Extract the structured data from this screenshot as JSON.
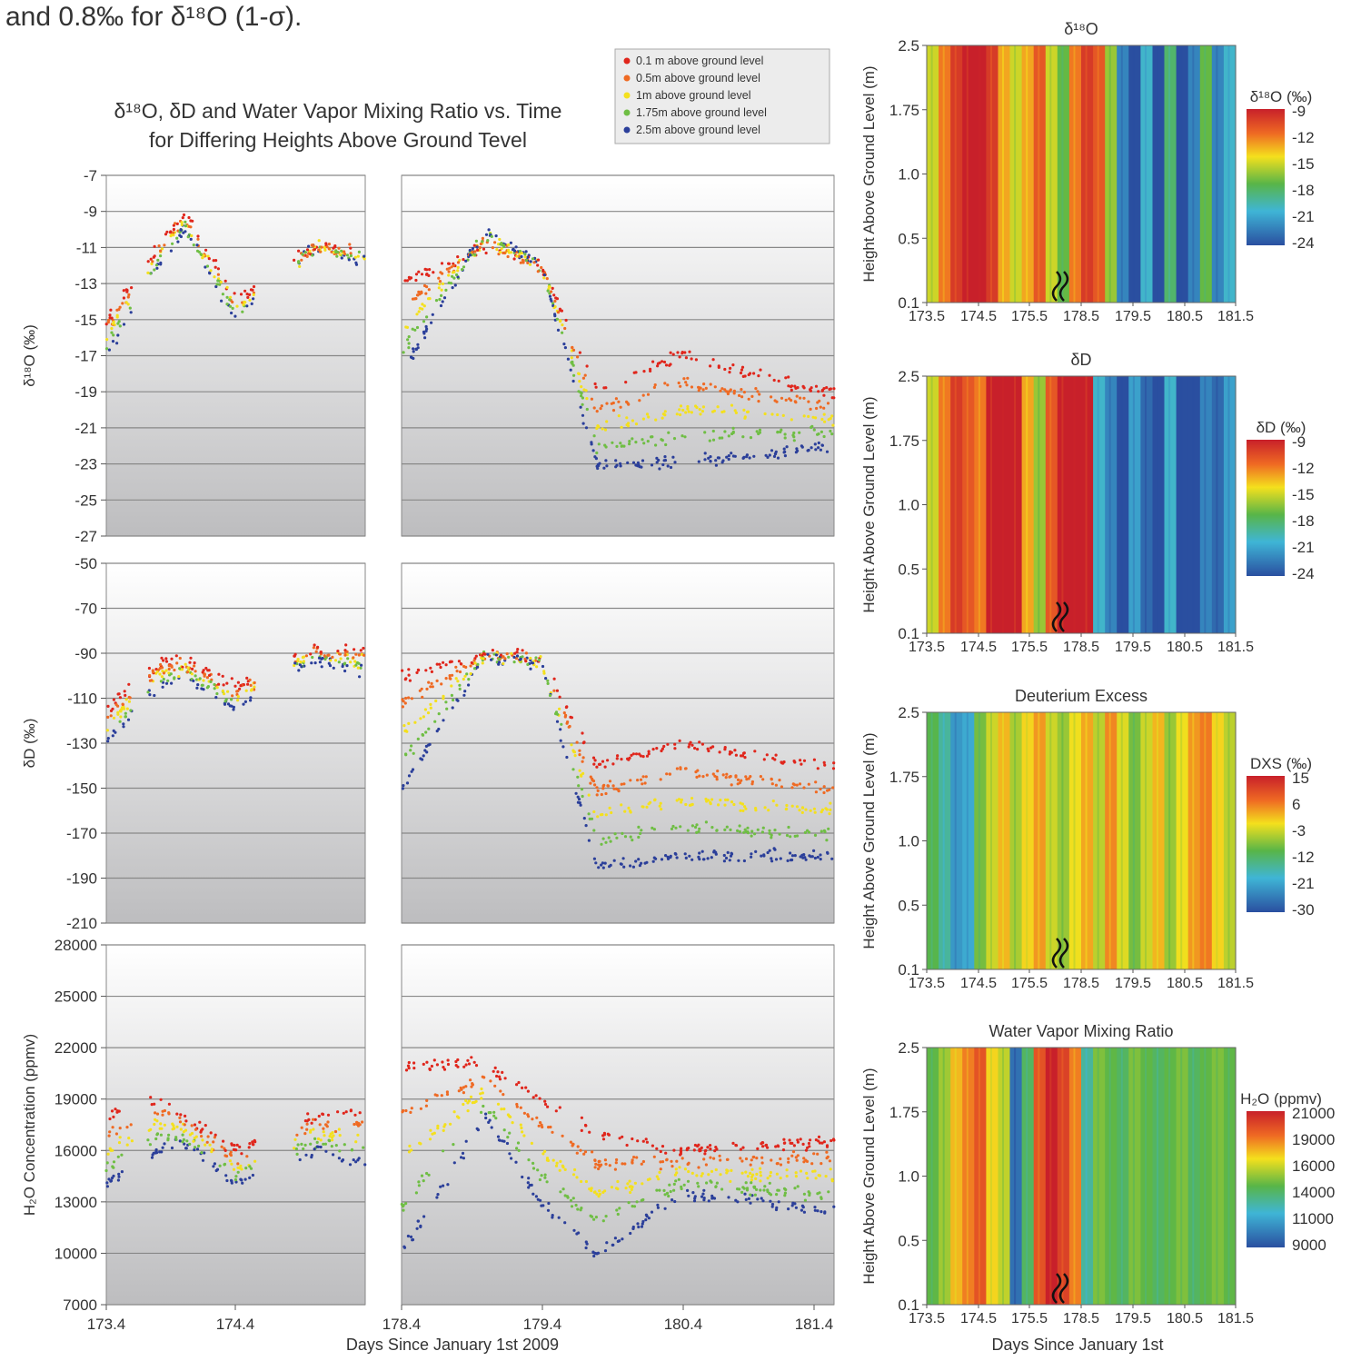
{
  "caption_fragment": "and 0.8‰ for δ¹⁸O (1-σ).",
  "left_figure": {
    "title_line1": "δ¹⁸O, δD and Water Vapor Mixing Ratio vs. Time",
    "title_line2": "for Differing Heights Above Ground Tevel",
    "xlabel": "Days Since January 1st 2009",
    "legend": [
      {
        "label": "0.1 m above ground level",
        "color": "#e0261c"
      },
      {
        "label": "0.5m above ground level",
        "color": "#ef6a23"
      },
      {
        "label": "1m above ground level",
        "color": "#f4e01d"
      },
      {
        "label": "1.75m above ground level",
        "color": "#6fbe44"
      },
      {
        "label": "2.5m above ground level",
        "color": "#2b3f9a"
      }
    ]
  },
  "chart_data": [
    {
      "type": "scatter",
      "id": "d18o-series",
      "ylabel": "δ¹⁸O (‰)",
      "yticks": [
        "-7",
        "-9",
        "-11",
        "-13",
        "-15",
        "-17",
        "-19",
        "-21",
        "-23",
        "-25",
        "-27"
      ],
      "ylim": [
        -27,
        -7
      ],
      "xticks": [
        "173.4",
        "174.4",
        "178.4",
        "179.4",
        "180.4",
        "181.4"
      ],
      "xlim": [
        173.4,
        181.5
      ],
      "axis_break": [
        175.4,
        178.4
      ],
      "series_approx_mean": {
        "0.1 m above ground level": [
          [
            173.4,
            -15
          ],
          [
            173.8,
            -11
          ],
          [
            174.0,
            -9
          ],
          [
            174.4,
            -14
          ],
          [
            175.0,
            -11
          ],
          [
            178.4,
            -13
          ],
          [
            179.0,
            -11
          ],
          [
            179.4,
            -12
          ],
          [
            179.8,
            -19
          ],
          [
            180.4,
            -17
          ],
          [
            181.4,
            -19
          ]
        ],
        "2.5m above ground level": [
          [
            173.4,
            -17
          ],
          [
            173.8,
            -12
          ],
          [
            174.0,
            -10
          ],
          [
            174.4,
            -15
          ],
          [
            175.0,
            -11
          ],
          [
            178.4,
            -18
          ],
          [
            179.0,
            -10
          ],
          [
            179.4,
            -12
          ],
          [
            179.8,
            -23
          ],
          [
            180.4,
            -23
          ],
          [
            181.4,
            -22
          ]
        ]
      }
    },
    {
      "type": "scatter",
      "id": "dd-series",
      "ylabel": "δD (‰)",
      "yticks": [
        "-50",
        "-70",
        "-90",
        "-110",
        "-130",
        "-150",
        "-170",
        "-190",
        "-210"
      ],
      "ylim": [
        -210,
        -50
      ],
      "xticks": [
        "173.4",
        "174.4",
        "178.4",
        "179.4",
        "180.4",
        "181.4"
      ],
      "xlim": [
        173.4,
        181.5
      ],
      "axis_break": [
        175.4,
        178.4
      ],
      "series_approx_mean": {
        "0.1 m above ground level": [
          [
            173.4,
            -115
          ],
          [
            173.8,
            -95
          ],
          [
            174.0,
            -93
          ],
          [
            174.4,
            -105
          ],
          [
            175.0,
            -88
          ],
          [
            178.4,
            -100
          ],
          [
            179.0,
            -90
          ],
          [
            179.4,
            -92
          ],
          [
            179.8,
            -140
          ],
          [
            180.4,
            -130
          ],
          [
            181.4,
            -140
          ]
        ],
        "2.5m above ground level": [
          [
            173.4,
            -130
          ],
          [
            173.8,
            -105
          ],
          [
            174.0,
            -100
          ],
          [
            174.4,
            -115
          ],
          [
            175.0,
            -92
          ],
          [
            178.4,
            -150
          ],
          [
            179.0,
            -92
          ],
          [
            179.4,
            -95
          ],
          [
            179.8,
            -185
          ],
          [
            180.4,
            -180
          ],
          [
            181.4,
            -180
          ]
        ]
      }
    },
    {
      "type": "scatter",
      "id": "h2o-series",
      "ylabel": "H₂O Concentration (ppmv)",
      "yticks": [
        "28000",
        "25000",
        "22000",
        "19000",
        "16000",
        "13000",
        "10000",
        "7000"
      ],
      "ylim": [
        7000,
        28000
      ],
      "xticks": [
        "173.4",
        "174.4",
        "178.4",
        "179.4",
        "180.4",
        "181.4"
      ],
      "xlim": [
        173.4,
        181.5
      ],
      "axis_break": [
        175.4,
        178.4
      ],
      "series_approx_mean": {
        "0.1 m above ground level": [
          [
            173.4,
            18000
          ],
          [
            173.8,
            19000
          ],
          [
            174.0,
            18000
          ],
          [
            174.4,
            16000
          ],
          [
            175.0,
            18000
          ],
          [
            178.4,
            21000
          ],
          [
            179.0,
            21000
          ],
          [
            179.4,
            19000
          ],
          [
            179.8,
            17000
          ],
          [
            180.4,
            16000
          ],
          [
            181.4,
            16500
          ]
        ],
        "2.5m above ground level": [
          [
            173.4,
            14000
          ],
          [
            173.8,
            16000
          ],
          [
            174.0,
            16500
          ],
          [
            174.4,
            14000
          ],
          [
            175.0,
            16000
          ],
          [
            178.4,
            10000
          ],
          [
            179.0,
            18000
          ],
          [
            179.4,
            13000
          ],
          [
            179.8,
            10000
          ],
          [
            180.4,
            13500
          ],
          [
            181.4,
            12500
          ]
        ]
      }
    },
    {
      "type": "heatmap",
      "id": "hm-d18o",
      "title": "δ¹⁸O",
      "ylabel": "Height Above Ground Level (m)",
      "yticks": [
        "2.5",
        "1.75",
        "1.0",
        "0.5",
        "0.1"
      ],
      "xticks": [
        "173.5",
        "174.5",
        "175.5",
        "178.5",
        "179.5",
        "180.5",
        "181.5"
      ],
      "colorbar_label": "δ¹⁸O (‰)",
      "colorbar_ticks": [
        "-9",
        "-12",
        "-15",
        "-18",
        "-21",
        "-24"
      ],
      "column_values": [
        -15,
        -12,
        -10,
        -9,
        -8,
        -10,
        -13,
        -15,
        -13,
        -11,
        -15,
        -17,
        -12,
        -10,
        -11,
        -16,
        -22,
        -25,
        -20,
        -24,
        -18,
        -26,
        -22,
        -17,
        -22,
        -20
      ]
    },
    {
      "type": "heatmap",
      "id": "hm-dd",
      "title": "δD",
      "ylabel": "Height Above Ground Level (m)",
      "yticks": [
        "2.5",
        "1.75",
        "1.0",
        "0.5",
        "0.1"
      ],
      "xticks": [
        "173.5",
        "174.5",
        "175.5",
        "178.5",
        "179.5",
        "180.5",
        "181.5"
      ],
      "colorbar_label": "δD (‰)",
      "colorbar_ticks": [
        "-9",
        "-12",
        "-15",
        "-18",
        "-21",
        "-24"
      ],
      "column_values": [
        -15,
        -12,
        -10,
        -11,
        -12,
        -9,
        -8,
        -9,
        -13,
        -16,
        -11,
        -9,
        -8,
        -9,
        -20,
        -22,
        -24,
        -21,
        -23,
        -25,
        -20,
        -24,
        -26,
        -22,
        -23,
        -21
      ]
    },
    {
      "type": "heatmap",
      "id": "hm-dxs",
      "title": "Deuterium Excess",
      "ylabel": "Height Above Ground Level (m)",
      "yticks": [
        "2.5",
        "1.75",
        "1.0",
        "0.5",
        "0.1"
      ],
      "xticks": [
        "173.5",
        "174.5",
        "175.5",
        "178.5",
        "179.5",
        "180.5",
        "181.5"
      ],
      "colorbar_label": "DXS (‰)",
      "colorbar_ticks": [
        "15",
        "6",
        "-3",
        "-12",
        "-21",
        "-30"
      ],
      "column_values": [
        -10,
        -15,
        -22,
        -20,
        -8,
        -3,
        2,
        -5,
        0,
        4,
        -3,
        -6,
        -1,
        3,
        -4,
        5,
        -2,
        -8,
        -3,
        2,
        -6,
        -1,
        4,
        6,
        0,
        -4
      ]
    },
    {
      "type": "heatmap",
      "id": "hm-h2o",
      "title": "Water Vapor Mixing Ratio",
      "ylabel": "Height Above Ground Level (m)",
      "yticks": [
        "2.5",
        "1.75",
        "1.0",
        "0.5",
        "0.1"
      ],
      "xticks": [
        "173.5",
        "174.5",
        "175.5",
        "178.5",
        "179.5",
        "180.5",
        "181.5"
      ],
      "xlabel": "Days Since January 1st",
      "colorbar_label": "H₂O (ppmv)",
      "colorbar_ticks": [
        "21000",
        "19000",
        "16000",
        "14000",
        "11000",
        "9000"
      ],
      "column_values": [
        14500,
        15500,
        17500,
        18500,
        19500,
        17000,
        16000,
        10000,
        14000,
        19500,
        21000,
        20000,
        18500,
        13000,
        15000,
        14500,
        14000,
        15000,
        14500,
        14000,
        14500,
        15000,
        14000,
        14500,
        15000,
        14500
      ]
    }
  ]
}
